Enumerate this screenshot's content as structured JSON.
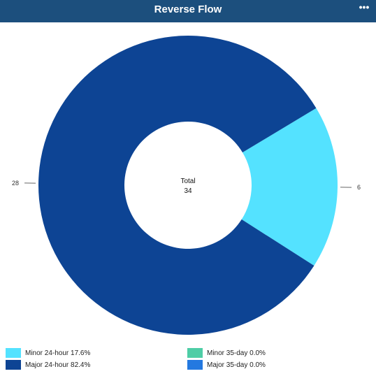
{
  "header": {
    "title": "Reverse Flow",
    "menu_icon": "more-horizontal-icon",
    "menu_glyph": "•••",
    "color": "#1c4f7d"
  },
  "chart_data": {
    "type": "pie",
    "title": "Reverse Flow",
    "center_label": "Total",
    "center_value": "34",
    "slices": [
      {
        "name": "Minor 24-hour",
        "value": 6,
        "percent": "17.6%",
        "color": "#54e2ff",
        "label": "6"
      },
      {
        "name": "Major 24-hour",
        "value": 28,
        "percent": "82.4%",
        "color": "#0d4494",
        "label": "28"
      },
      {
        "name": "Minor 35-day",
        "value": 0,
        "percent": "0.0%",
        "color": "#4ecda6",
        "label": ""
      },
      {
        "name": "Major 35-day",
        "value": 0,
        "percent": "0.0%",
        "color": "#2479e0",
        "label": ""
      }
    ],
    "legend": [
      {
        "label": "Minor 24-hour 17.6%",
        "color": "#54e2ff"
      },
      {
        "label": "Minor 35-day 0.0%",
        "color": "#4ecda6"
      },
      {
        "label": "Major 24-hour 82.4%",
        "color": "#0d4494"
      },
      {
        "label": "Major 35-day 0.0%",
        "color": "#2479e0"
      }
    ],
    "legend_position": "bottom"
  }
}
